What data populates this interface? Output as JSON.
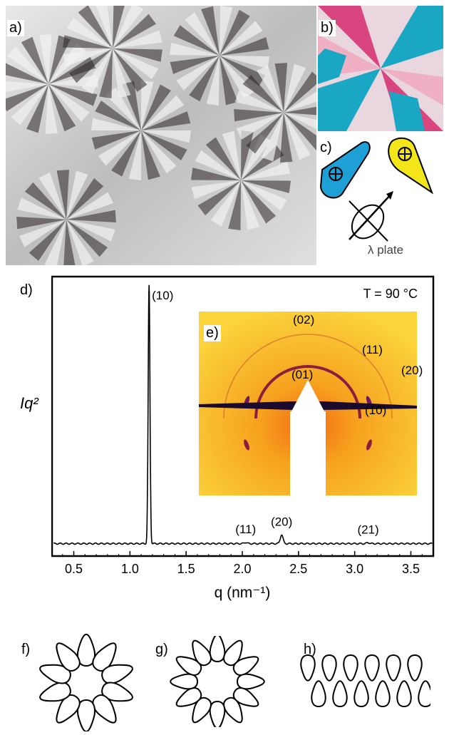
{
  "panels": {
    "a": "a)",
    "b": "b)",
    "c": "c)",
    "d": "d)",
    "e": "e)",
    "f": "f)",
    "g": "g)",
    "h": "h)"
  },
  "lambda_plate_label": "λ plate",
  "chart_data": {
    "type": "line",
    "title": "",
    "xlabel": "q (nm⁻¹)",
    "ylabel": "Iq²",
    "temperature_note": "T = 90 °C",
    "xlim": [
      0.3,
      3.7
    ],
    "x_ticks": [
      0.5,
      1.0,
      1.5,
      2.0,
      2.5,
      3.0,
      3.5
    ],
    "x_tick_labels": [
      "0.5",
      "1.0",
      "1.5",
      "2.0",
      "2.5",
      "3.0",
      "3.5"
    ],
    "ylim": [
      0,
      100
    ],
    "baseline": 1.5,
    "peaks": [
      {
        "label": "(10)",
        "q": 1.17,
        "height": 100
      },
      {
        "label": "(11)",
        "q": 2.03,
        "height": 0.5
      },
      {
        "label": "(20)",
        "q": 2.35,
        "height": 3.5
      },
      {
        "label": "(21)",
        "q": 3.12,
        "height": 0.4
      }
    ]
  },
  "inset_reflections": [
    "(02)",
    "(11)",
    "(20)",
    "(01)",
    "(10)"
  ],
  "colors": {
    "pom_teal": "#19a7c4",
    "pom_magenta": "#d9457e",
    "pom_pink": "#f0b0c4",
    "indicator_blue": "#1e9fd6",
    "indicator_yellow": "#f2e51a",
    "saxs_orange": "#f6a21f",
    "saxs_yellow": "#fbd33b"
  }
}
